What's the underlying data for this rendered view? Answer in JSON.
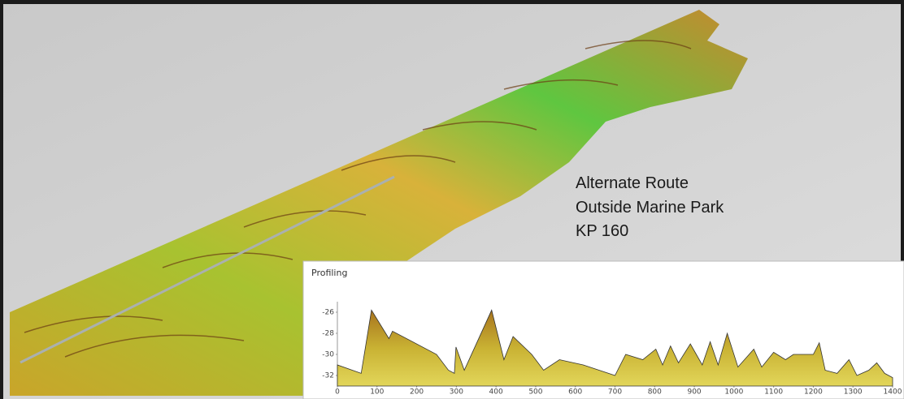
{
  "annotation": [
    "Alternate Route",
    "Outside Marine Park",
    "KP 160"
  ],
  "chart_data": {
    "type": "area",
    "title": "Profiling",
    "x": [
      0,
      60,
      86,
      130,
      139,
      250,
      280,
      295,
      299,
      320,
      389,
      420,
      443,
      490,
      520,
      560,
      620,
      700,
      727,
      770,
      803,
      820,
      840,
      860,
      890,
      920,
      940,
      960,
      983,
      1010,
      1050,
      1070,
      1100,
      1130,
      1150,
      1200,
      1215,
      1230,
      1260,
      1290,
      1310,
      1340,
      1360,
      1380,
      1400
    ],
    "values": [
      -31,
      -31.8,
      -25.8,
      -28.5,
      -27.8,
      -30,
      -31.5,
      -31.8,
      -29.3,
      -31.5,
      -25.8,
      -30.5,
      -28.3,
      -30,
      -31.5,
      -30.5,
      -31,
      -32,
      -30,
      -30.5,
      -29.5,
      -31,
      -29.2,
      -30.8,
      -29,
      -31,
      -28.8,
      -31,
      -28,
      -31.2,
      -29.5,
      -31.2,
      -29.8,
      -30.5,
      -30,
      -30,
      -28.9,
      -31.5,
      -31.8,
      -30.5,
      -32,
      -31.5,
      -30.8,
      -31.8,
      -32.2
    ],
    "xlim": [
      0,
      1400
    ],
    "ylim": [
      -33,
      -25
    ],
    "xticks": [
      0,
      100,
      200,
      300,
      400,
      500,
      600,
      700,
      800,
      900,
      1000,
      1100,
      1200,
      1300,
      1400
    ],
    "yticks": [
      -26,
      -28,
      -30,
      -32
    ]
  }
}
